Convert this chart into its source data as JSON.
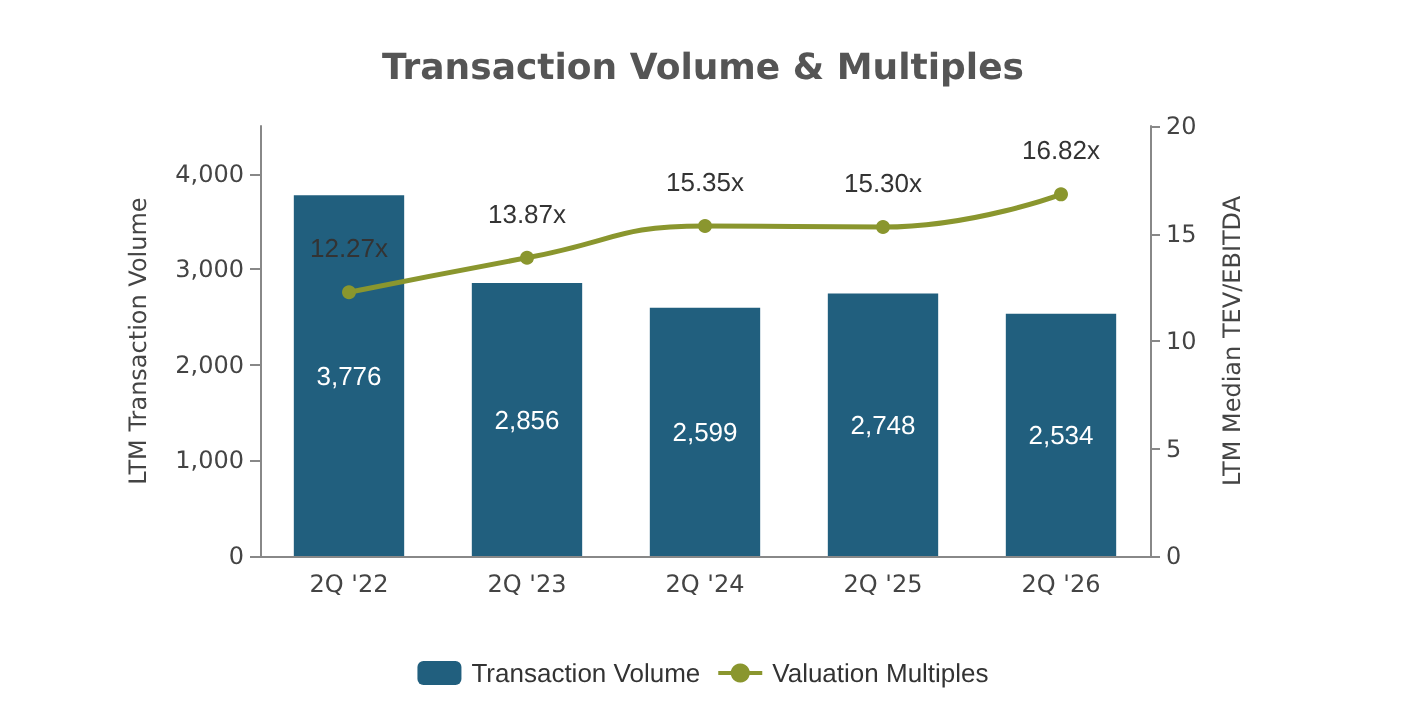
{
  "chart_data": {
    "type": "bar",
    "title": "Transaction Volume & Multiples",
    "categories": [
      "2Q '22",
      "2Q '23",
      "2Q '24",
      "2Q '25",
      "2Q '26"
    ],
    "ylabel": "LTM Transaction Volume",
    "y2label": "LTM Median TEV/EBITDA",
    "series": [
      {
        "name": "Transaction Volume",
        "color": "#215f7e",
        "values": [
          3776,
          2856,
          2599,
          2748,
          2534
        ],
        "value_labels": [
          "3,776",
          "2,856",
          "2,599",
          "2,748",
          "2,534"
        ]
      },
      {
        "name": "Valuation Multiples",
        "type": "line",
        "axis": "y2",
        "color": "#8a962e",
        "marker": "circle",
        "values": [
          12.27,
          13.87,
          15.35,
          15.3,
          16.82
        ],
        "value_labels": [
          "12.27x",
          "13.87x",
          "15.35x",
          "15.30x",
          "16.82x"
        ]
      }
    ],
    "ylim": [
      0,
      4500
    ],
    "yticks": [
      0,
      {
        "value": 1000,
        "label": "1,000"
      },
      {
        "value": 2000,
        "label": "2,000"
      },
      {
        "value": 3000,
        "label": "3,000"
      },
      {
        "value": 4000,
        "label": "4,000"
      }
    ],
    "y2lim": [
      0,
      20
    ],
    "y2ticks": [
      0,
      5,
      10,
      15,
      20
    ],
    "grid": false,
    "legend": "bottom"
  }
}
